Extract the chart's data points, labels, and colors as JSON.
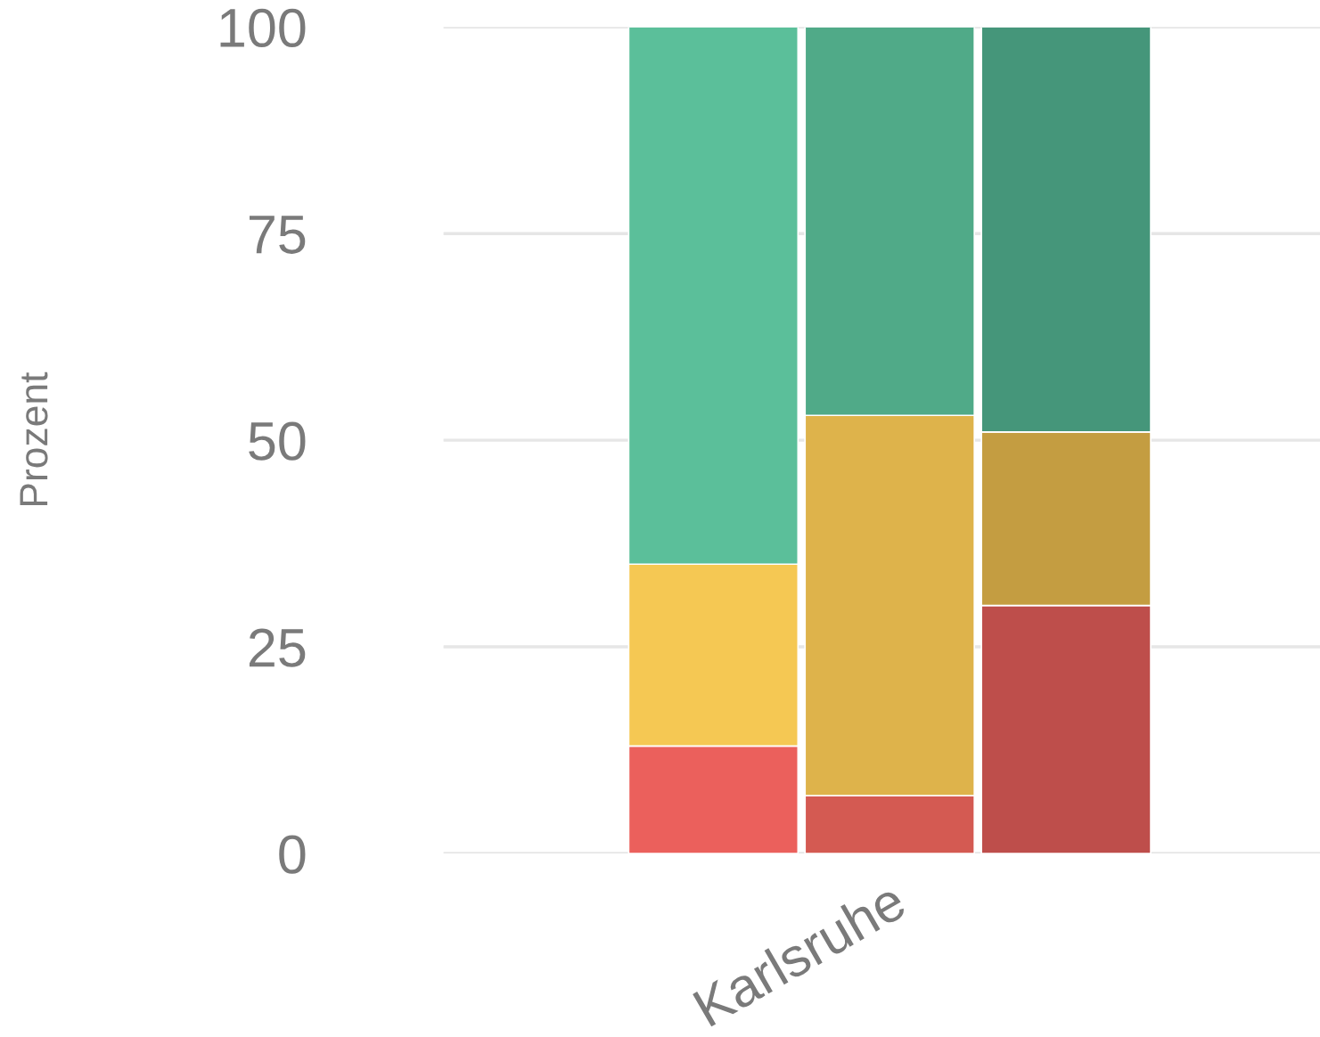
{
  "chart_data": {
    "type": "bar",
    "stacked": true,
    "ylabel": "Prozent",
    "categories": [
      null,
      "Karlsruhe",
      null
    ],
    "series": [
      {
        "colors": [
          "#eb605c",
          "#d45a52",
          "#be4e4b"
        ],
        "values": [
          13,
          7,
          30
        ]
      },
      {
        "colors": [
          "#f5c853",
          "#deb34b",
          "#c49d41"
        ],
        "values": [
          22,
          46,
          21
        ]
      },
      {
        "colors": [
          "#5bbf9a",
          "#50aa88",
          "#45967a"
        ],
        "values": [
          65,
          47,
          49
        ]
      }
    ],
    "ylim": [
      0,
      100
    ],
    "yticks": [
      0,
      25,
      50,
      75,
      100
    ],
    "grid": "y"
  }
}
